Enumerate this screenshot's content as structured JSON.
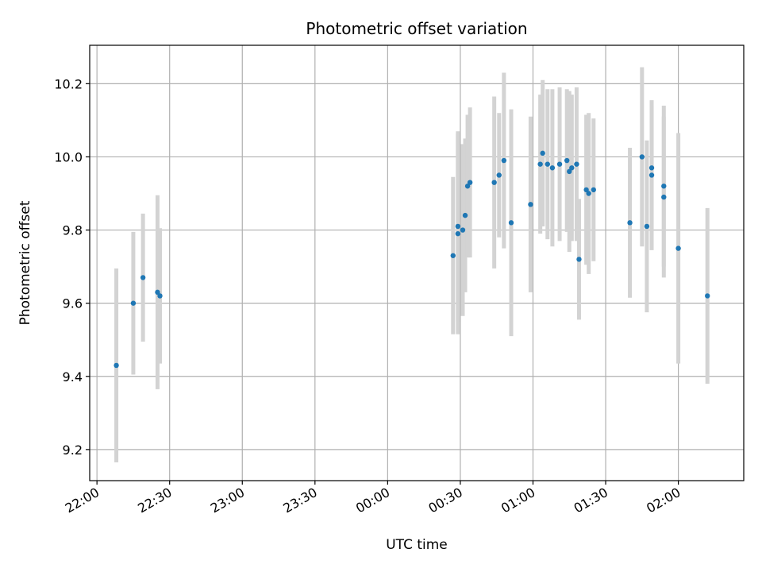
{
  "chart_data": {
    "type": "scatter",
    "title": "Photometric offset variation",
    "xlabel": "UTC time",
    "ylabel": "Photometric offset",
    "xlim": [
      "21:57",
      "02:27"
    ],
    "ylim": [
      9.115,
      10.305
    ],
    "x_ticks": [
      "22:00",
      "22:30",
      "23:00",
      "23:30",
      "00:00",
      "00:30",
      "01:00",
      "01:30",
      "02:00"
    ],
    "y_ticks": [
      "9.2",
      "9.4",
      "9.6",
      "9.8",
      "10.0",
      "10.2"
    ],
    "grid": true,
    "colors": {
      "point": "#1f77b4",
      "errorbar": "#d3d3d3",
      "grid": "#b0b0b0"
    },
    "points": [
      {
        "t": "22:08",
        "y": 9.43,
        "err": 0.265
      },
      {
        "t": "22:15",
        "y": 9.6,
        "err": 0.195
      },
      {
        "t": "22:19",
        "y": 9.67,
        "err": 0.175
      },
      {
        "t": "22:25",
        "y": 9.63,
        "err": 0.265
      },
      {
        "t": "22:26",
        "y": 9.62,
        "err": 0.185
      },
      {
        "t": "00:27",
        "y": 9.73,
        "err": 0.215
      },
      {
        "t": "00:29",
        "y": 9.81,
        "err": 0.26
      },
      {
        "t": "00:29",
        "y": 9.79,
        "err": 0.275
      },
      {
        "t": "00:31",
        "y": 9.8,
        "err": 0.235
      },
      {
        "t": "00:32",
        "y": 9.84,
        "err": 0.21
      },
      {
        "t": "00:33",
        "y": 9.92,
        "err": 0.195
      },
      {
        "t": "00:34",
        "y": 9.93,
        "err": 0.205
      },
      {
        "t": "00:44",
        "y": 9.93,
        "err": 0.235
      },
      {
        "t": "00:46",
        "y": 9.95,
        "err": 0.17
      },
      {
        "t": "00:48",
        "y": 9.99,
        "err": 0.24
      },
      {
        "t": "00:51",
        "y": 9.82,
        "err": 0.31
      },
      {
        "t": "00:59",
        "y": 9.87,
        "err": 0.24
      },
      {
        "t": "01:03",
        "y": 9.98,
        "err": 0.19
      },
      {
        "t": "01:04",
        "y": 10.01,
        "err": 0.2
      },
      {
        "t": "01:06",
        "y": 9.98,
        "err": 0.205
      },
      {
        "t": "01:08",
        "y": 9.97,
        "err": 0.215
      },
      {
        "t": "01:11",
        "y": 9.98,
        "err": 0.21
      },
      {
        "t": "01:14",
        "y": 9.99,
        "err": 0.195
      },
      {
        "t": "01:15",
        "y": 9.96,
        "err": 0.22
      },
      {
        "t": "01:16",
        "y": 9.97,
        "err": 0.2
      },
      {
        "t": "01:18",
        "y": 9.98,
        "err": 0.21
      },
      {
        "t": "01:19",
        "y": 9.72,
        "err": 0.165
      },
      {
        "t": "01:22",
        "y": 9.91,
        "err": 0.205
      },
      {
        "t": "01:23",
        "y": 9.9,
        "err": 0.22
      },
      {
        "t": "01:25",
        "y": 9.91,
        "err": 0.195
      },
      {
        "t": "01:40",
        "y": 9.82,
        "err": 0.205
      },
      {
        "t": "01:45",
        "y": 10.0,
        "err": 0.245
      },
      {
        "t": "01:47",
        "y": 9.81,
        "err": 0.235
      },
      {
        "t": "01:49",
        "y": 9.95,
        "err": 0.205
      },
      {
        "t": "01:49",
        "y": 9.97,
        "err": 0.17
      },
      {
        "t": "01:54",
        "y": 9.89,
        "err": 0.22
      },
      {
        "t": "01:54",
        "y": 9.92,
        "err": 0.22
      },
      {
        "t": "02:00",
        "y": 9.75,
        "err": 0.315
      },
      {
        "t": "02:12",
        "y": 9.62,
        "err": 0.24
      }
    ]
  }
}
